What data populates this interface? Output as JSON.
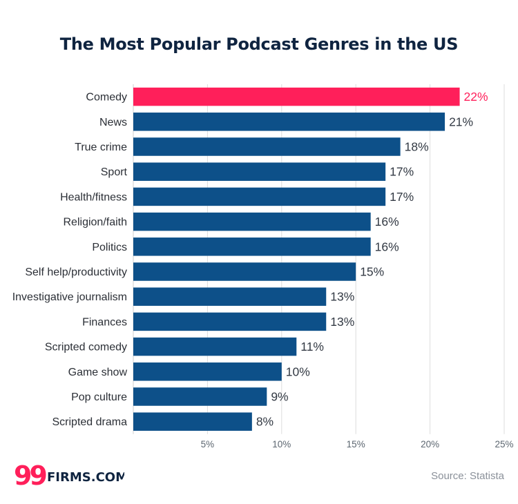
{
  "chart_data": {
    "type": "bar",
    "orientation": "horizontal",
    "title": "The Most Popular Podcast Genres in the US",
    "categories": [
      "Comedy",
      "News",
      "True crime",
      "Sport",
      "Health/fitness",
      "Religion/faith",
      "Politics",
      "Self help/productivity",
      "Investigative journalism",
      "Finances",
      "Scripted comedy",
      "Game show",
      "Pop culture",
      "Scripted drama"
    ],
    "values": [
      22,
      21,
      18,
      17,
      17,
      16,
      16,
      15,
      13,
      13,
      11,
      10,
      9,
      8
    ],
    "value_labels": [
      "22%",
      "21%",
      "18%",
      "17%",
      "17%",
      "16%",
      "16%",
      "15%",
      "13%",
      "13%",
      "11%",
      "10%",
      "9%",
      "8%"
    ],
    "xlim": [
      0,
      25
    ],
    "xticks": [
      5,
      10,
      15,
      20,
      25
    ],
    "xtick_labels": [
      "5%",
      "10%",
      "15%",
      "20%",
      "25%"
    ],
    "grid": "vertical",
    "colors": {
      "highlight": "#ff1f5a",
      "bar": "#0d5089",
      "value_text": "#333a44",
      "grid": "#dddddd"
    },
    "highlight_index": 0
  },
  "branding": {
    "logo_number": "99",
    "logo_text": "FIRMS.COM"
  },
  "source": "Source: Statista"
}
